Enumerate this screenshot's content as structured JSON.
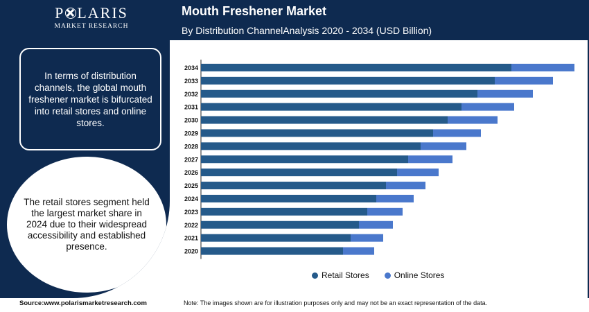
{
  "brand": {
    "name_part1": "P",
    "name_part2": "LARIS",
    "tagline": "MARKET RESEARCH"
  },
  "header": {
    "title": "Mouth Freshener Market",
    "subtitle": "By Distribution ChannelAnalysis 2020 - 2034 (USD Billion)"
  },
  "left_panel": {
    "info_text": "In terms of distribution channels, the global mouth freshener market is bifurcated into retail stores and online stores.",
    "circle_text": "The retail stores segment held the largest market share in 2024 due to their widespread accessibility and established presence."
  },
  "footer": {
    "source": "Source:www.polarismarketresearch.com",
    "note": "Note: The images shown are for illustration purposes only and may not be an exact representation of the data."
  },
  "colors": {
    "navy": "#0e2a50",
    "retail": "#255a8a",
    "online": "#4a78cc"
  },
  "chart_data": {
    "type": "bar",
    "orientation": "horizontal",
    "stacked": true,
    "title": "",
    "xlabel": "",
    "ylabel": "",
    "categories": [
      "2034",
      "2033",
      "2032",
      "2031",
      "2030",
      "2029",
      "2028",
      "2027",
      "2026",
      "2025",
      "2024",
      "2023",
      "2022",
      "2021",
      "2020"
    ],
    "series": [
      {
        "name": "Retail Stores",
        "color": "#255a8a",
        "values": [
          44.8,
          42.4,
          39.9,
          37.6,
          35.6,
          33.5,
          31.7,
          29.9,
          28.3,
          26.7,
          25.3,
          24.0,
          22.8,
          21.6,
          20.5
        ]
      },
      {
        "name": "Online Stores",
        "color": "#4a78cc",
        "values": [
          9.1,
          8.4,
          8.0,
          7.6,
          7.2,
          6.9,
          6.6,
          6.4,
          6.0,
          5.7,
          5.4,
          5.1,
          4.9,
          4.7,
          4.5
        ]
      }
    ],
    "xlim": [
      0,
      55
    ],
    "grid": false,
    "legend_position": "bottom"
  }
}
